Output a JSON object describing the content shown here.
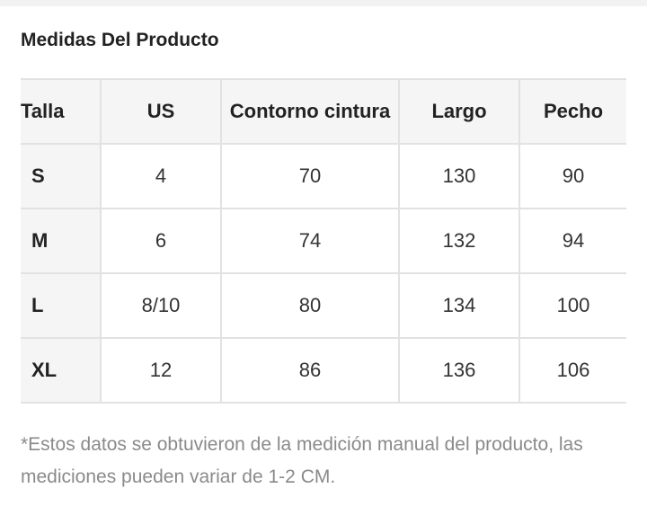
{
  "title": "Medidas Del Producto",
  "table": {
    "headers": [
      "Talla",
      "US",
      "Contorno cintura",
      "Largo",
      "Pecho"
    ],
    "rows": [
      [
        "S",
        "4",
        "70",
        "130",
        "90"
      ],
      [
        "M",
        "6",
        "74",
        "132",
        "94"
      ],
      [
        "L",
        "8/10",
        "80",
        "134",
        "100"
      ],
      [
        "XL",
        "12",
        "86",
        "136",
        "106"
      ]
    ]
  },
  "note": "*Estos datos se obtuvieron de la medición manual del producto, las mediciones pueden variar de 1-2 CM."
}
